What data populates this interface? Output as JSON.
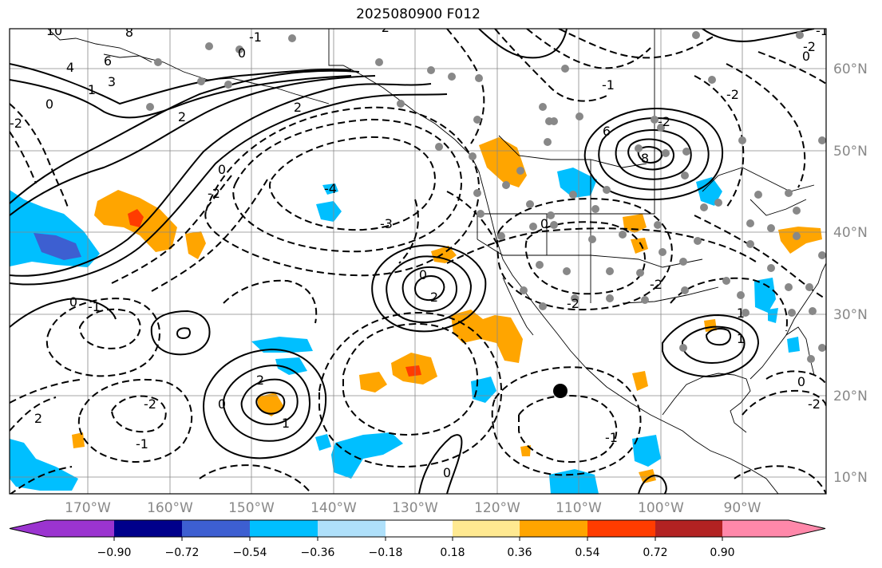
{
  "title": "2025080900 F012",
  "longitude_labels": [
    "170°W",
    "160°W",
    "150°W",
    "140°W",
    "130°W",
    "120°W",
    "110°W",
    "100°W",
    "90°W"
  ],
  "latitude_labels": [
    "60°N",
    "50°N",
    "40°N",
    "30°N",
    "20°N",
    "10°N"
  ],
  "colorbar": {
    "ticks": [
      "−0.90",
      "−0.72",
      "−0.54",
      "−0.36",
      "−0.18",
      "0.18",
      "0.36",
      "0.54",
      "0.72",
      "0.90"
    ],
    "colors": [
      "#9b34d0",
      "#00008b",
      "#3d5fd1",
      "#00bfff",
      "#afe0fa",
      "#ffffff",
      "#ffe991",
      "#ffa500",
      "#ff3c00",
      "#b22222",
      "#ff88aa"
    ]
  },
  "contour_labels": [
    "10",
    "8",
    "6",
    "4",
    "3",
    "1",
    "0",
    "0",
    "-1",
    "2",
    "2",
    "0",
    "-2",
    "-4",
    "-3",
    "-2",
    "-1",
    "6",
    "8",
    "-2",
    "0",
    "-2",
    "-1",
    "0",
    "1",
    "2",
    "0",
    "1",
    "2",
    "0",
    "-2",
    "-1",
    "2",
    "-2",
    "0",
    "1",
    "-1",
    "0",
    "-2",
    "-1",
    "-2",
    "0",
    "-2",
    "-2"
  ],
  "fill_colors": {
    "orange": "#ffa500",
    "red": "#ff3c00",
    "blue": "#00bfff",
    "darkblue": "#3d5fd1",
    "pink": "#ff88aa"
  }
}
